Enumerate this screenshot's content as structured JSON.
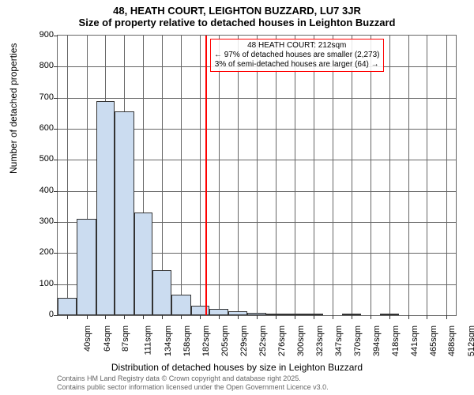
{
  "title_main": "48, HEATH COURT, LEIGHTON BUZZARD, LU7 3JR",
  "title_sub": "Size of property relative to detached houses in Leighton Buzzard",
  "y_axis_label": "Number of detached properties",
  "x_axis_label": "Distribution of detached houses by size in Leighton Buzzard",
  "footer_line1": "Contains HM Land Registry data © Crown copyright and database right 2025.",
  "footer_line2": "Contains public sector information licensed under the Open Government Licence v3.0.",
  "marker": {
    "value_sqm": 212,
    "line1": "48 HEATH COURT: 212sqm",
    "line2": "← 97% of detached houses are smaller (2,273)",
    "line3": "3% of semi-detached houses are larger (64) →"
  },
  "chart": {
    "type": "histogram",
    "background_color": "#ffffff",
    "bar_color": "#cbdcf0",
    "bar_border_color": "#333333",
    "grid_color": "#666666",
    "marker_color": "#ff0000",
    "x_min": 28,
    "x_max": 524,
    "ylim": [
      0,
      900
    ],
    "ytick_step": 100,
    "x_ticks": [
      40,
      64,
      87,
      111,
      134,
      158,
      182,
      205,
      229,
      252,
      276,
      300,
      323,
      347,
      370,
      394,
      418,
      441,
      465,
      488,
      512
    ],
    "x_tick_labels": [
      "40sqm",
      "64sqm",
      "87sqm",
      "111sqm",
      "134sqm",
      "158sqm",
      "182sqm",
      "205sqm",
      "229sqm",
      "252sqm",
      "276sqm",
      "300sqm",
      "323sqm",
      "347sqm",
      "370sqm",
      "394sqm",
      "418sqm",
      "441sqm",
      "465sqm",
      "488sqm",
      "512sqm"
    ],
    "bars": [
      {
        "x_start": 28,
        "x_end": 52,
        "value": 55
      },
      {
        "x_start": 52,
        "x_end": 76,
        "value": 310
      },
      {
        "x_start": 76,
        "x_end": 99,
        "value": 690
      },
      {
        "x_start": 99,
        "x_end": 123,
        "value": 655
      },
      {
        "x_start": 123,
        "x_end": 146,
        "value": 330
      },
      {
        "x_start": 146,
        "x_end": 170,
        "value": 145
      },
      {
        "x_start": 170,
        "x_end": 194,
        "value": 65
      },
      {
        "x_start": 194,
        "x_end": 217,
        "value": 30
      },
      {
        "x_start": 217,
        "x_end": 241,
        "value": 20
      },
      {
        "x_start": 241,
        "x_end": 264,
        "value": 13
      },
      {
        "x_start": 264,
        "x_end": 288,
        "value": 8
      },
      {
        "x_start": 288,
        "x_end": 312,
        "value": 6
      },
      {
        "x_start": 312,
        "x_end": 335,
        "value": 5
      },
      {
        "x_start": 335,
        "x_end": 359,
        "value": 3
      },
      {
        "x_start": 359,
        "x_end": 382,
        "value": 0
      },
      {
        "x_start": 382,
        "x_end": 406,
        "value": 2
      },
      {
        "x_start": 406,
        "x_end": 430,
        "value": 0
      },
      {
        "x_start": 430,
        "x_end": 453,
        "value": 6
      },
      {
        "x_start": 453,
        "x_end": 477,
        "value": 0
      },
      {
        "x_start": 477,
        "x_end": 500,
        "value": 0
      },
      {
        "x_start": 500,
        "x_end": 524,
        "value": 0
      }
    ]
  }
}
